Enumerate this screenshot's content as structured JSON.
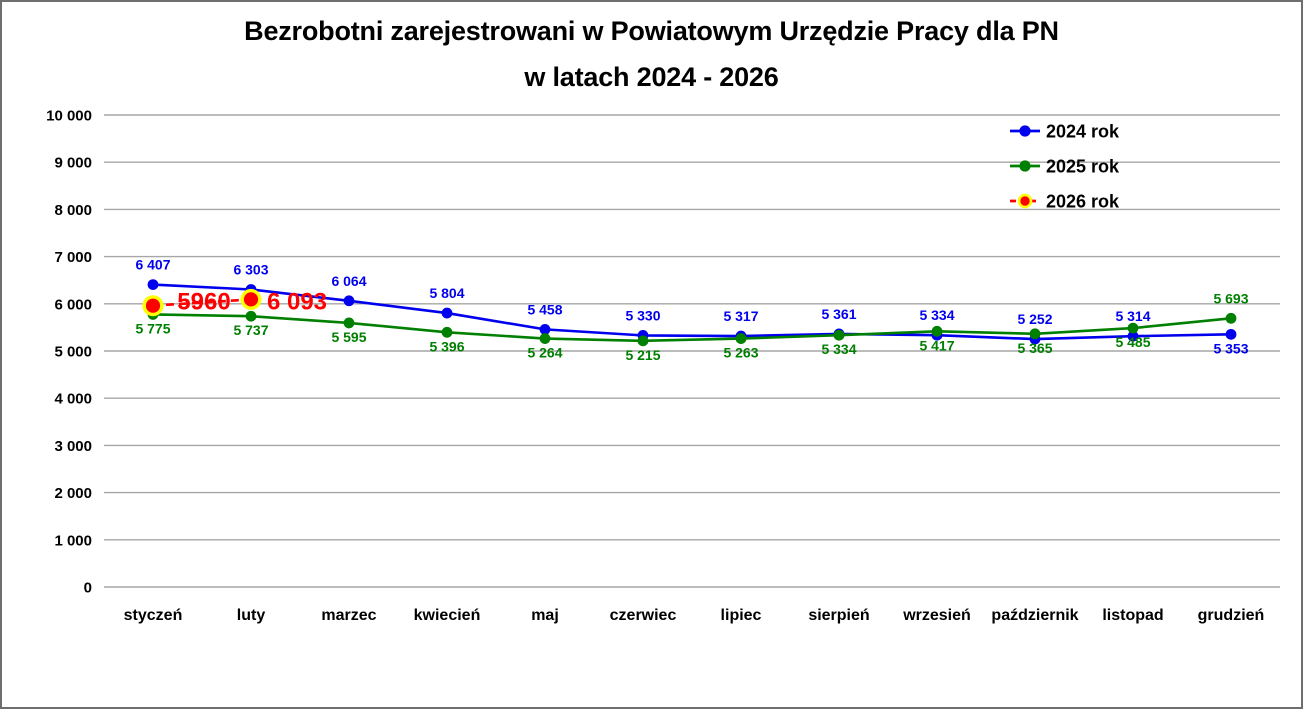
{
  "chart_data": {
    "type": "line",
    "title_lines": [
      "Bezrobotni zarejestrowani w Powiatowym Urzędzie Pracy dla PN",
      "w latach 2024 - 2026"
    ],
    "x_categories": [
      "styczeń",
      "luty",
      "marzec",
      "kwiecień",
      "maj",
      "czerwiec",
      "lipiec",
      "sierpień",
      "wrzesień",
      "październik",
      "listopad",
      "grudzień"
    ],
    "ylim": [
      0,
      10000
    ],
    "ytick_step": 1000,
    "ytick_labels": [
      "0",
      "1 000",
      "2 000",
      "3 000",
      "4 000",
      "5 000",
      "6 000",
      "7 000",
      "8 000",
      "9 000",
      "10 000"
    ],
    "grid": true,
    "legend_position": "top-right",
    "series": [
      {
        "name": "2024 rok",
        "color": "#0000ee",
        "line_style": "solid",
        "marker": "circle",
        "values": [
          6407,
          6303,
          6064,
          5804,
          5458,
          5330,
          5317,
          5361,
          5334,
          5252,
          5314,
          5353
        ],
        "labels": [
          "6 407",
          "6 303",
          "6 064",
          "5 804",
          "5 458",
          "5 330",
          "5 317",
          "5 361",
          "5 334",
          "5 252",
          "5 314",
          "5 353"
        ],
        "label_side": [
          "above",
          "above",
          "above",
          "above",
          "above",
          "above",
          "above",
          "above",
          "above",
          "above",
          "above",
          "below"
        ]
      },
      {
        "name": "2025 rok",
        "color": "#008000",
        "line_style": "solid",
        "marker": "circle",
        "values": [
          5775,
          5737,
          5595,
          5396,
          5264,
          5215,
          5263,
          5334,
          5417,
          5365,
          5485,
          5693
        ],
        "labels": [
          "5 775",
          "5 737",
          "5 595",
          "5 396",
          "5 264",
          "5 215",
          "5 263",
          "5 334",
          "5 417",
          "5 365",
          "5 485",
          "5 693"
        ],
        "label_side": [
          "below",
          "below",
          "below",
          "below",
          "below",
          "below",
          "below",
          "below",
          "below",
          "below",
          "below",
          "above"
        ]
      },
      {
        "name": "2026 rok",
        "color": "#ff0000",
        "marker_ring_color": "#ffff00",
        "line_style": "dashed",
        "marker": "circle-ring",
        "values": [
          5960,
          6093,
          null,
          null,
          null,
          null,
          null,
          null,
          null,
          null,
          null,
          null
        ],
        "labels": [
          "5960",
          "6 093",
          "",
          "",
          "",
          "",
          "",
          "",
          "",
          "",
          "",
          ""
        ],
        "label_side": [
          "right",
          "right",
          "",
          "",
          "",
          "",
          "",
          "",
          "",
          "",
          "",
          ""
        ],
        "label_dx": [
          51,
          46
        ],
        "label_dy": [
          4,
          10
        ],
        "label_size": "large"
      }
    ]
  }
}
